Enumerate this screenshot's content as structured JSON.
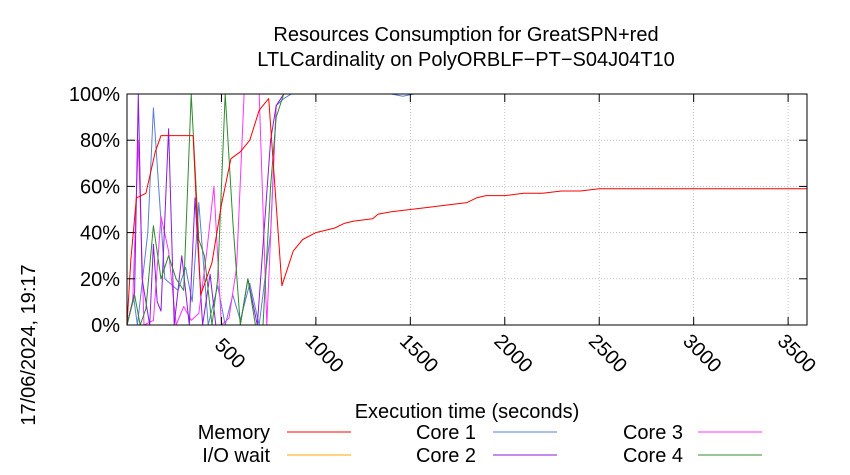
{
  "chart_data": {
    "type": "line",
    "title_lines": [
      "Resources Consumption for GreatSPN+red",
      "LTLCardinality on PolyORBLF−PT−S04J04T10"
    ],
    "xlabel": "Execution time (seconds)",
    "ylabel": "",
    "side_label": "17/06/2024, 19:17",
    "xlim": [
      0,
      3600
    ],
    "ylim": [
      0,
      100
    ],
    "x_ticks": [
      500,
      1000,
      1500,
      2000,
      2500,
      3000,
      3500
    ],
    "y_ticks": [
      0,
      20,
      40,
      60,
      80,
      100
    ],
    "y_tick_labels": [
      "0%",
      "20%",
      "40%",
      "60%",
      "80%",
      "100%"
    ],
    "grid": true,
    "legend_position": "bottom",
    "series": [
      {
        "name": "Memory",
        "color": "#ff0000",
        "points": [
          [
            0,
            0
          ],
          [
            20,
            28
          ],
          [
            50,
            55
          ],
          [
            100,
            57
          ],
          [
            150,
            75
          ],
          [
            180,
            82
          ],
          [
            240,
            82
          ],
          [
            350,
            82
          ],
          [
            390,
            13
          ],
          [
            420,
            20
          ],
          [
            450,
            27
          ],
          [
            500,
            52
          ],
          [
            550,
            72
          ],
          [
            600,
            75
          ],
          [
            650,
            80
          ],
          [
            700,
            93
          ],
          [
            750,
            98
          ],
          [
            820,
            17
          ],
          [
            880,
            32
          ],
          [
            930,
            37
          ],
          [
            1000,
            40
          ],
          [
            1100,
            42
          ],
          [
            1150,
            44
          ],
          [
            1200,
            45
          ],
          [
            1300,
            46
          ],
          [
            1330,
            48
          ],
          [
            1400,
            49
          ],
          [
            1500,
            50
          ],
          [
            1600,
            51
          ],
          [
            1700,
            52
          ],
          [
            1800,
            53
          ],
          [
            1850,
            55
          ],
          [
            1900,
            56
          ],
          [
            2000,
            56
          ],
          [
            2100,
            57
          ],
          [
            2200,
            57
          ],
          [
            2300,
            58
          ],
          [
            2400,
            58
          ],
          [
            2500,
            59
          ],
          [
            2600,
            59
          ],
          [
            3600,
            59
          ]
        ]
      },
      {
        "name": "I/O wait",
        "color": "#ffa500",
        "points": [
          [
            0,
            0
          ],
          [
            3600,
            0
          ]
        ]
      },
      {
        "name": "Core 1",
        "color": "#5a7fd6",
        "points": [
          [
            0,
            0
          ],
          [
            35,
            12
          ],
          [
            55,
            0
          ],
          [
            110,
            40
          ],
          [
            140,
            94
          ],
          [
            200,
            20
          ],
          [
            270,
            15
          ],
          [
            310,
            25
          ],
          [
            345,
            10
          ],
          [
            380,
            53
          ],
          [
            430,
            0
          ],
          [
            480,
            17
          ],
          [
            520,
            0
          ],
          [
            560,
            13
          ],
          [
            600,
            2
          ],
          [
            650,
            18
          ],
          [
            700,
            0
          ],
          [
            760,
            40
          ],
          [
            790,
            95
          ],
          [
            830,
            98
          ],
          [
            870,
            100
          ],
          [
            1100,
            100
          ],
          [
            1400,
            100
          ],
          [
            1460,
            99
          ],
          [
            1520,
            100
          ],
          [
            3600,
            100
          ]
        ]
      },
      {
        "name": "Core 2",
        "color": "#8b1adb",
        "points": [
          [
            0,
            0
          ],
          [
            40,
            14
          ],
          [
            60,
            100
          ],
          [
            80,
            20
          ],
          [
            120,
            0
          ],
          [
            140,
            35
          ],
          [
            160,
            10
          ],
          [
            180,
            6
          ],
          [
            220,
            85
          ],
          [
            250,
            0
          ],
          [
            290,
            30
          ],
          [
            330,
            0
          ],
          [
            360,
            55
          ],
          [
            400,
            0
          ],
          [
            440,
            22
          ],
          [
            470,
            0
          ],
          [
            520,
            0
          ],
          [
            560,
            0
          ],
          [
            600,
            0
          ],
          [
            640,
            20
          ],
          [
            690,
            0
          ],
          [
            760,
            80
          ],
          [
            790,
            95
          ],
          [
            830,
            100
          ],
          [
            3600,
            100
          ]
        ]
      },
      {
        "name": "Core 3",
        "color": "#ff33ff",
        "points": [
          [
            0,
            0
          ],
          [
            30,
            10
          ],
          [
            60,
            80
          ],
          [
            90,
            0
          ],
          [
            140,
            2
          ],
          [
            180,
            47
          ],
          [
            220,
            32
          ],
          [
            260,
            0
          ],
          [
            300,
            8
          ],
          [
            340,
            2
          ],
          [
            380,
            5
          ],
          [
            420,
            30
          ],
          [
            460,
            60
          ],
          [
            500,
            0
          ],
          [
            540,
            3
          ],
          [
            580,
            25
          ],
          [
            620,
            100
          ],
          [
            660,
            100
          ],
          [
            700,
            100
          ],
          [
            740,
            0
          ],
          [
            790,
            95
          ],
          [
            830,
            100
          ],
          [
            3600,
            100
          ]
        ]
      },
      {
        "name": "Core 4",
        "color": "#2e8b2e",
        "points": [
          [
            0,
            0
          ],
          [
            40,
            13
          ],
          [
            70,
            0
          ],
          [
            100,
            7
          ],
          [
            140,
            43
          ],
          [
            180,
            20
          ],
          [
            220,
            30
          ],
          [
            260,
            20
          ],
          [
            300,
            15
          ],
          [
            340,
            100
          ],
          [
            380,
            37
          ],
          [
            410,
            30
          ],
          [
            450,
            0
          ],
          [
            480,
            20
          ],
          [
            520,
            100
          ],
          [
            560,
            45
          ],
          [
            600,
            0
          ],
          [
            640,
            20
          ],
          [
            680,
            0
          ],
          [
            720,
            0
          ],
          [
            760,
            60
          ],
          [
            790,
            90
          ],
          [
            830,
            100
          ],
          [
            3600,
            100
          ]
        ]
      }
    ]
  }
}
